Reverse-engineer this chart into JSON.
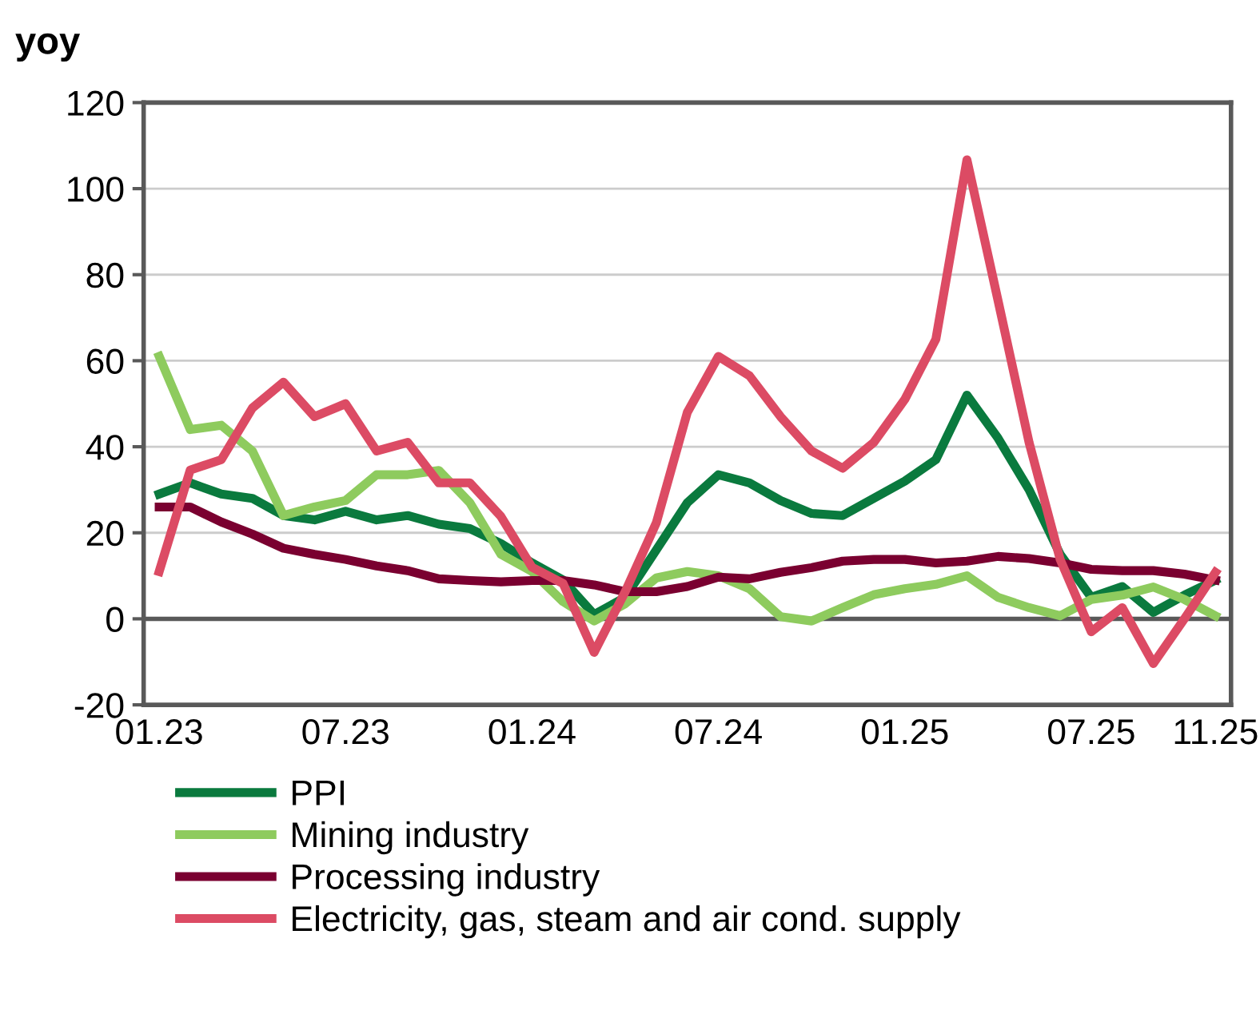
{
  "chart_data": {
    "type": "line",
    "ylabel": "yoy",
    "categories": [
      "01.23",
      null,
      null,
      null,
      null,
      null,
      "07.23",
      null,
      null,
      null,
      null,
      null,
      "01.24",
      null,
      null,
      null,
      null,
      null,
      "07.24",
      null,
      null,
      null,
      null,
      null,
      "01.25",
      null,
      null,
      null,
      null,
      null,
      "07.25",
      null,
      null,
      null,
      "11.25"
    ],
    "series": [
      {
        "name": "PPI",
        "color": "#0a7a3e",
        "values": [
          29,
          31.6,
          29,
          28,
          24,
          23,
          25,
          23,
          24,
          22,
          21,
          17.5,
          13,
          9,
          1,
          5,
          16,
          27,
          33.5,
          31.6,
          27.5,
          24.5,
          24,
          28,
          32,
          37,
          52,
          42,
          30,
          15,
          5,
          7.5,
          1.5,
          5.5,
          9
        ]
      },
      {
        "name": "Mining industry",
        "color": "#8ecb5e",
        "values": [
          61,
          44,
          45,
          39,
          24,
          26,
          27.5,
          33.5,
          33.5,
          34.5,
          27,
          15,
          11,
          4,
          -0.5,
          3.5,
          9.5,
          11,
          10,
          7,
          0.5,
          -0.5,
          2.6,
          5.6,
          7,
          8,
          10,
          5,
          2.6,
          0.7,
          4.5,
          5.5,
          7.4,
          4.5,
          0.7
        ]
      },
      {
        "name": "Processing industry",
        "color": "#7a0030",
        "values": [
          26,
          26,
          22.5,
          19.7,
          16.4,
          15,
          13.8,
          12.3,
          11.2,
          9.3,
          8.9,
          8.6,
          8.9,
          8.9,
          7.9,
          6.3,
          6.3,
          7.5,
          9.7,
          9.3,
          10.8,
          11.9,
          13.4,
          13.8,
          13.8,
          13,
          13.4,
          14.5,
          14,
          13,
          11.5,
          11.2,
          11.2,
          10.4,
          9
        ]
      },
      {
        "name": "Electricity, gas, steam and air cond. supply",
        "color": "#dc4b64",
        "values": [
          11,
          34.6,
          37,
          49,
          55,
          47,
          50,
          39,
          41,
          31.6,
          31.6,
          23.8,
          12,
          8.2,
          -7.8,
          6.3,
          22.3,
          48,
          61,
          56.5,
          47,
          39,
          35,
          41,
          51,
          65,
          106.7,
          74,
          41,
          13.8,
          -3,
          2.6,
          -10.4,
          0,
          10.8
        ]
      }
    ],
    "ylim": [
      -20,
      120
    ],
    "yticks": [
      -20,
      0,
      20,
      40,
      60,
      80,
      100,
      120
    ],
    "ref_lines": [
      {
        "axis": "y",
        "value": 0,
        "color": "#595959"
      }
    ],
    "grid": "y",
    "legend": "bottom",
    "marker": "none",
    "line_style": "solid"
  }
}
